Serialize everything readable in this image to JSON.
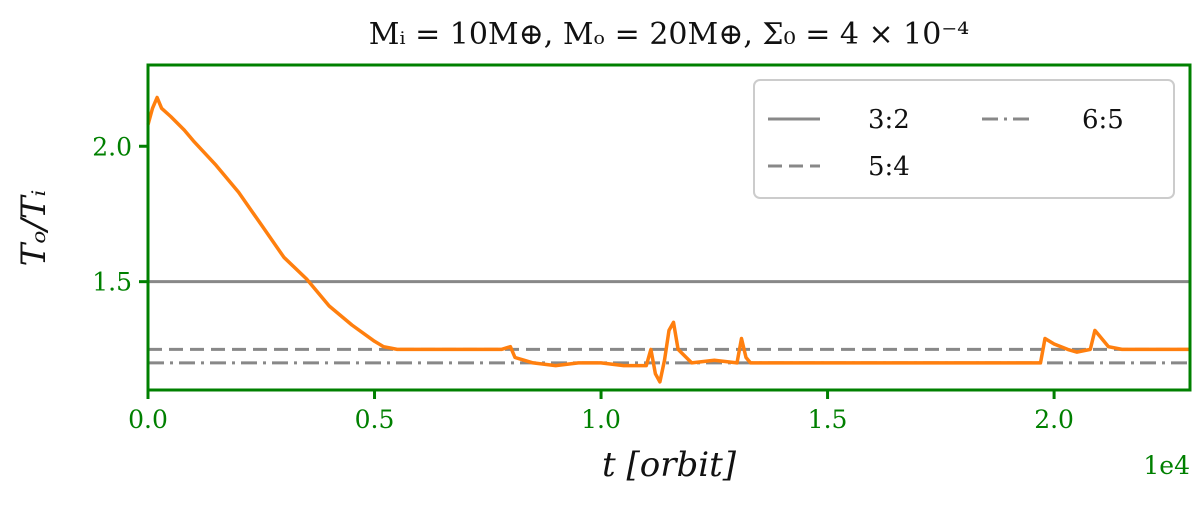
{
  "chart_data": {
    "type": "line",
    "title": "Mᵢ = 10M⊕, Mₒ = 20M⊕, Σ₀ = 4 × 10⁻⁴",
    "xlabel": "t [orbit]",
    "ylabel": "Tₒ/Tᵢ",
    "x_multiplier": "1e4",
    "xlim": [
      0,
      2.3
    ],
    "ylim": [
      1.1,
      2.3
    ],
    "xticks": [
      0.0,
      0.5,
      1.0,
      1.5,
      2.0
    ],
    "xtick_labels": [
      "0.0",
      "0.5",
      "1.0",
      "1.5",
      "2.0"
    ],
    "yticks": [
      1.5,
      2.0
    ],
    "ytick_labels": [
      "1.5",
      "2.0"
    ],
    "grid": false,
    "legend_position": "top-right",
    "colors": {
      "axes": "#008000",
      "data": "#ff7f0e",
      "reference": "#888888",
      "text": "#111111"
    },
    "series": [
      {
        "style": "solid-orange",
        "x": [
          0.0,
          0.01,
          0.02,
          0.03,
          0.05,
          0.08,
          0.1,
          0.15,
          0.2,
          0.25,
          0.3,
          0.35,
          0.4,
          0.45,
          0.5,
          0.52,
          0.55,
          0.6,
          0.65,
          0.7,
          0.75,
          0.78,
          0.8,
          0.81,
          0.83,
          0.85,
          0.9,
          0.95,
          1.0,
          1.05,
          1.1,
          1.11,
          1.12,
          1.13,
          1.14,
          1.15,
          1.16,
          1.17,
          1.2,
          1.25,
          1.3,
          1.31,
          1.32,
          1.33,
          1.35,
          1.4,
          1.5,
          1.6,
          1.7,
          1.8,
          1.9,
          1.97,
          1.98,
          2.0,
          2.03,
          2.05,
          2.08,
          2.09,
          2.1,
          2.12,
          2.15,
          2.2,
          2.25,
          2.3
        ],
        "y": [
          2.08,
          2.14,
          2.18,
          2.14,
          2.11,
          2.06,
          2.02,
          1.93,
          1.83,
          1.71,
          1.59,
          1.51,
          1.41,
          1.34,
          1.28,
          1.26,
          1.25,
          1.25,
          1.25,
          1.25,
          1.25,
          1.25,
          1.26,
          1.22,
          1.21,
          1.2,
          1.19,
          1.2,
          1.2,
          1.19,
          1.19,
          1.25,
          1.16,
          1.13,
          1.21,
          1.32,
          1.35,
          1.25,
          1.2,
          1.21,
          1.2,
          1.29,
          1.22,
          1.2,
          1.2,
          1.2,
          1.2,
          1.2,
          1.2,
          1.2,
          1.2,
          1.2,
          1.29,
          1.27,
          1.25,
          1.24,
          1.25,
          1.32,
          1.3,
          1.26,
          1.25,
          1.25,
          1.25,
          1.25
        ]
      }
    ],
    "reference_lines": [
      {
        "name": "3:2",
        "y": 1.5,
        "style": "solid"
      },
      {
        "name": "5:4",
        "y": 1.25,
        "style": "dashed"
      },
      {
        "name": "6:5",
        "y": 1.2,
        "style": "dashdot"
      }
    ]
  }
}
